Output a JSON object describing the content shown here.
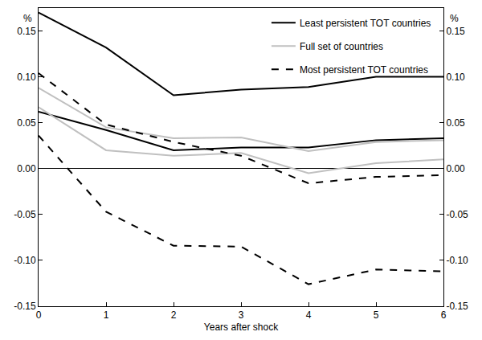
{
  "chart_data": {
    "type": "line",
    "x_label": "Years after shock",
    "y_label": "%",
    "y2_label": "%",
    "x": [
      0,
      1,
      2,
      3,
      4,
      5,
      6
    ],
    "xlim": [
      0,
      6
    ],
    "xticks": [
      0,
      1,
      2,
      3,
      4,
      5,
      6
    ],
    "ylim": [
      -0.15,
      0.175
    ],
    "yticks": [
      -0.15,
      {
        "value": -0.1,
        "label": "-0.10"
      },
      -0.05,
      {
        "value": 0,
        "label": "0.00"
      },
      0.05,
      {
        "value": 0.1,
        "label": "0.10"
      },
      0.15
    ],
    "y2lim": [
      -0.15,
      0.175
    ],
    "y2ticks": [
      -0.15,
      {
        "value": -0.1,
        "label": "-0.10"
      },
      -0.05,
      {
        "value": 0,
        "label": "0.00"
      },
      0.05,
      {
        "value": 0.1,
        "label": "0.10"
      },
      0.15
    ],
    "grid": false,
    "legend": "upper right",
    "series": [
      {
        "name": "Least persistent TOT countries",
        "color": "#000000",
        "line_style": "solid",
        "values": [
          0.17,
          0.132,
          0.08,
          0.086,
          0.089,
          0.1,
          0.1
        ]
      },
      {
        "name": "Least persistent TOT countries",
        "color": "#000000",
        "line_style": "solid",
        "values": [
          0.062,
          0.042,
          0.02,
          0.023,
          0.023,
          0.031,
          0.033
        ]
      },
      {
        "name": "Full set of countries",
        "color": "#c0c0c0",
        "line_style": "solid",
        "values": [
          0.088,
          0.045,
          0.033,
          0.034,
          0.019,
          0.029,
          0.031
        ]
      },
      {
        "name": "Full set of countries",
        "color": "#c0c0c0",
        "line_style": "solid",
        "values": [
          0.067,
          0.02,
          0.014,
          0.017,
          -0.005,
          0.006,
          0.01
        ]
      },
      {
        "name": "Most persistent TOT countries",
        "color": "#000000",
        "line_style": "dashed",
        "values": [
          0.104,
          0.048,
          0.029,
          0.014,
          -0.016,
          -0.009,
          -0.007
        ]
      },
      {
        "name": "Most persistent TOT countries",
        "color": "#000000",
        "line_style": "dashed",
        "values": [
          0.036,
          -0.047,
          -0.084,
          -0.085,
          -0.126,
          -0.11,
          -0.112
        ]
      }
    ]
  }
}
